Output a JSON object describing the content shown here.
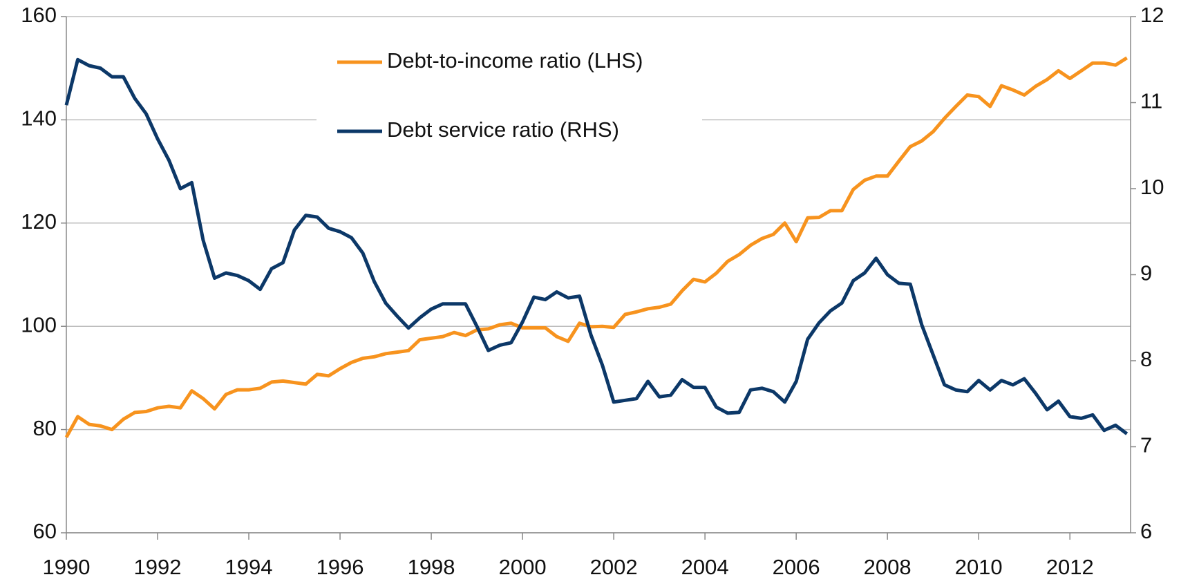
{
  "chart_data": {
    "type": "line",
    "x": [
      1990,
      1990.25,
      1990.5,
      1990.75,
      1991,
      1991.25,
      1991.5,
      1991.75,
      1992,
      1992.25,
      1992.5,
      1992.75,
      1993,
      1993.25,
      1993.5,
      1993.75,
      1994,
      1994.25,
      1994.5,
      1994.75,
      1995,
      1995.25,
      1995.5,
      1995.75,
      1996,
      1996.25,
      1996.5,
      1996.75,
      1997,
      1997.25,
      1997.5,
      1997.75,
      1998,
      1998.25,
      1998.5,
      1998.75,
      1999,
      1999.25,
      1999.5,
      1999.75,
      2000,
      2000.25,
      2000.5,
      2000.75,
      2001,
      2001.25,
      2001.5,
      2001.75,
      2002,
      2002.25,
      2002.5,
      2002.75,
      2003,
      2003.25,
      2003.5,
      2003.75,
      2004,
      2004.25,
      2004.5,
      2004.75,
      2005,
      2005.25,
      2005.5,
      2005.75,
      2006,
      2006.25,
      2006.5,
      2006.75,
      2007,
      2007.25,
      2007.5,
      2007.75,
      2008,
      2008.25,
      2008.5,
      2008.75,
      2009,
      2009.25,
      2009.5,
      2009.75,
      2010,
      2010.25,
      2010.5,
      2010.75,
      2011,
      2011.25,
      2011.5,
      2011.75,
      2012,
      2012.25,
      2012.5,
      2012.75,
      2013,
      2013.25
    ],
    "series": [
      {
        "name": "Debt-to-income ratio (LHS)",
        "color": "#f7931e",
        "values": [
          78.5,
          82.5,
          81,
          80.7,
          80,
          82,
          83.3,
          83.5,
          84.2,
          84.5,
          84.2,
          87.5,
          86,
          84,
          86.8,
          87.7,
          87.7,
          88,
          89.2,
          89.4,
          89.1,
          88.8,
          90.7,
          90.4,
          91.8,
          93,
          93.8,
          94.1,
          94.7,
          95,
          95.3,
          97.4,
          97.7,
          98,
          98.8,
          98.2,
          99.3,
          99.5,
          100.3,
          100.6,
          99.7,
          99.7,
          99.7,
          98,
          97.1,
          100.6,
          99.9,
          100,
          99.8,
          102.3,
          102.8,
          103.4,
          103.7,
          104.3,
          106.9,
          109.1,
          108.6,
          110.3,
          112.6,
          113.9,
          115.7,
          117,
          117.8,
          120,
          116.4,
          121,
          121.1,
          122.4,
          122.4,
          126.5,
          128.3,
          129.1,
          129.1,
          132,
          134.8,
          135.9,
          137.7,
          140.3,
          142.6,
          144.8,
          144.5,
          142.6,
          146.6,
          145.8,
          144.8,
          146.5,
          147.8,
          149.5,
          148,
          149.5,
          151,
          151,
          150.6,
          152
        ]
      },
      {
        "name": "Debt service ratio (RHS)",
        "color": "#0c3868",
        "axis": "y2",
        "values": [
          10.97,
          11.5,
          11.43,
          11.4,
          11.3,
          11.3,
          11.05,
          10.87,
          10.58,
          10.33,
          10,
          10.07,
          9.4,
          8.96,
          9.02,
          8.99,
          8.93,
          8.83,
          9.07,
          9.14,
          9.52,
          9.69,
          9.67,
          9.54,
          9.5,
          9.43,
          9.25,
          8.92,
          8.67,
          8.52,
          8.38,
          8.5,
          8.6,
          8.66,
          8.66,
          8.66,
          8.4,
          8.12,
          8.18,
          8.21,
          8.45,
          8.74,
          8.71,
          8.8,
          8.73,
          8.75,
          8.3,
          7.95,
          7.52,
          7.54,
          7.56,
          7.76,
          7.58,
          7.6,
          7.78,
          7.69,
          7.69,
          7.46,
          7.39,
          7.4,
          7.66,
          7.68,
          7.64,
          7.52,
          7.76,
          8.25,
          8.44,
          8.58,
          8.67,
          8.93,
          9.02,
          9.19,
          9,
          8.9,
          8.89,
          8.42,
          8.07,
          7.72,
          7.66,
          7.64,
          7.77,
          7.66,
          7.77,
          7.72,
          7.79,
          7.62,
          7.43,
          7.53,
          7.35,
          7.33,
          7.37,
          7.19,
          7.25,
          7.15
        ]
      }
    ],
    "xlim": [
      1990,
      2013.33
    ],
    "xticks": [
      1990,
      1992,
      1994,
      1996,
      1998,
      2000,
      2002,
      2004,
      2006,
      2008,
      2010,
      2012
    ],
    "ylim": [
      60,
      160
    ],
    "yticks": [
      60,
      80,
      100,
      120,
      140,
      160
    ],
    "y2lim": [
      6,
      12
    ],
    "y2ticks": [
      6,
      7,
      8,
      9,
      10,
      11,
      12
    ],
    "grid": true,
    "legend": "upper center"
  }
}
